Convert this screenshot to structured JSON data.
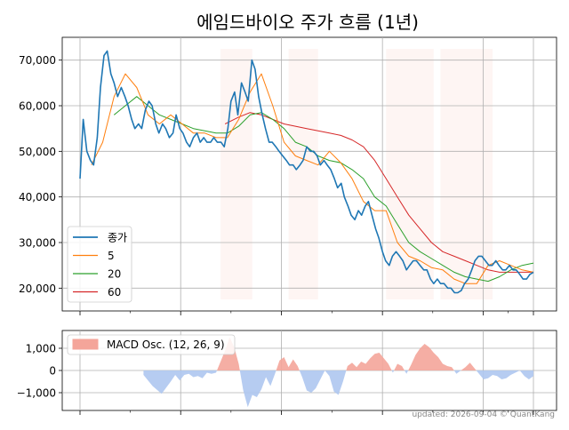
{
  "chart_data": [
    {
      "type": "line",
      "title": "에임드바이오 주가 흐름 (1년)",
      "x_range": [
        0,
        100
      ],
      "ylim": [
        15000,
        75000
      ],
      "y_ticks": [
        20000,
        30000,
        40000,
        50000,
        60000,
        70000
      ],
      "y_tick_labels": [
        "20,000",
        "30,000",
        "40,000",
        "50,000",
        "60,000",
        "70,000"
      ],
      "grid": true,
      "legend_position": "lower-left",
      "shaded_ranges": [
        [
          31.0,
          38.0
        ],
        [
          46.0,
          52.5
        ],
        [
          67.5,
          78.0
        ],
        [
          79.5,
          91.0
        ]
      ],
      "colors": {
        "종가": "#1f77b4",
        "5": "#ff7f0e",
        "20": "#2ca02c",
        "60": "#d62728",
        "shade": "#fdecea"
      },
      "series": [
        {
          "name": "종가",
          "x": [
            0,
            0.7,
            1.5,
            2.3,
            3.0,
            3.8,
            4.5,
            5.3,
            6.0,
            6.8,
            7.5,
            8.3,
            9.1,
            9.9,
            10.6,
            11.4,
            12.1,
            12.9,
            13.6,
            14.4,
            15.2,
            15.9,
            16.7,
            17.4,
            18.2,
            18.9,
            19.7,
            20.5,
            21.2,
            22.0,
            22.7,
            23.5,
            24.2,
            25.0,
            25.8,
            26.5,
            27.3,
            28.0,
            28.8,
            29.5,
            30.3,
            31.1,
            31.8,
            32.6,
            33.3,
            34.1,
            34.8,
            35.6,
            36.4,
            37.1,
            37.9,
            38.6,
            39.4,
            40.2,
            40.9,
            41.7,
            42.4,
            43.2,
            43.9,
            44.7,
            45.5,
            46.2,
            47.0,
            47.7,
            48.5,
            49.2,
            50.0,
            50.8,
            51.5,
            52.3,
            53.0,
            53.8,
            54.5,
            55.3,
            56.1,
            56.8,
            57.6,
            58.3,
            59.1,
            59.8,
            60.6,
            61.4,
            62.1,
            62.9,
            63.6,
            64.4,
            65.2,
            65.9,
            66.7,
            67.4,
            68.2,
            68.9,
            69.7,
            70.5,
            71.2,
            72.0,
            72.7,
            73.5,
            74.2,
            75.0,
            75.8,
            76.5,
            77.3,
            78.0,
            78.8,
            79.5,
            80.3,
            81.1,
            81.8,
            82.6,
            83.3,
            84.1,
            84.8,
            85.6,
            86.4,
            87.1,
            87.9,
            88.6,
            89.4,
            90.2,
            90.9,
            91.7,
            92.4,
            93.2,
            93.9,
            94.7,
            95.5,
            96.2,
            97.0,
            97.7,
            98.5,
            99.2,
            100
          ],
          "values": [
            44000,
            57000,
            50000,
            48000,
            47000,
            53000,
            64000,
            71000,
            72000,
            67000,
            65000,
            62000,
            64000,
            62000,
            60000,
            57000,
            55000,
            56000,
            55000,
            59000,
            61000,
            60000,
            56000,
            54000,
            56000,
            55000,
            53000,
            54000,
            58000,
            55000,
            54000,
            52000,
            51000,
            53000,
            54000,
            52000,
            53000,
            52000,
            52000,
            53000,
            52000,
            52000,
            51000,
            55000,
            61000,
            63000,
            58000,
            65000,
            63000,
            61000,
            70000,
            68000,
            62000,
            58000,
            55000,
            52000,
            52000,
            51000,
            50000,
            49000,
            48000,
            47000,
            47000,
            46000,
            47000,
            48000,
            51000,
            50000,
            50000,
            49000,
            47000,
            48000,
            47000,
            46000,
            44000,
            42000,
            43000,
            40000,
            38000,
            36000,
            35000,
            37000,
            36000,
            38000,
            39000,
            36000,
            33000,
            31000,
            28000,
            26000,
            25000,
            27000,
            28000,
            27000,
            26000,
            24000,
            25000,
            26000,
            26000,
            25000,
            24000,
            24000,
            22000,
            21000,
            22000,
            21000,
            21000,
            20000,
            20000,
            19000,
            19000,
            19500,
            21000,
            22000,
            24000,
            26000,
            27000,
            27000,
            26000,
            25000,
            25000,
            26000,
            25000,
            24000,
            24000,
            25000,
            24000,
            24000,
            23000,
            22000,
            22000,
            23000,
            23500
          ],
          "stroke_width": 1.6
        },
        {
          "name": "5",
          "x": [
            2.5,
            5,
            7.5,
            10,
            12.5,
            15,
            17.5,
            20,
            22.5,
            25,
            27.5,
            30,
            32.5,
            35,
            37.5,
            40,
            42.5,
            45,
            47.5,
            50,
            52.5,
            55,
            57.5,
            60,
            62.5,
            65,
            67.5,
            70,
            72.5,
            75,
            77.5,
            80,
            82.5,
            85,
            87.5,
            90,
            92.5,
            95,
            97.5,
            100
          ],
          "values": [
            47000,
            52000,
            62000,
            67000,
            64000,
            58000,
            56000,
            58000,
            56000,
            54000,
            54000,
            53000,
            53000,
            57000,
            63000,
            67000,
            60000,
            52000,
            49000,
            48000,
            47000,
            50000,
            47500,
            44000,
            39000,
            37000,
            37000,
            30000,
            27000,
            26000,
            24500,
            24000,
            22000,
            21000,
            21000,
            25000,
            26000,
            25000,
            24000,
            23500
          ],
          "stroke_width": 1.0
        },
        {
          "name": "20",
          "x": [
            7.5,
            10,
            12.5,
            15,
            17.5,
            20,
            22.5,
            25,
            27.5,
            30,
            32.5,
            35,
            37.5,
            40,
            42.5,
            45,
            47.5,
            50,
            52.5,
            55,
            57.5,
            60,
            62.5,
            65,
            67.5,
            70,
            72.5,
            75,
            77.5,
            80,
            82.5,
            85,
            87.5,
            90,
            92.5,
            95,
            97.5,
            100
          ],
          "values": [
            58000,
            60000,
            62000,
            60000,
            58000,
            57000,
            56000,
            55000,
            54500,
            54000,
            54000,
            55500,
            58000,
            58500,
            57000,
            55000,
            52000,
            51000,
            49000,
            48000,
            47500,
            46000,
            44000,
            40000,
            38000,
            34000,
            30000,
            28000,
            26500,
            25000,
            23500,
            22500,
            22000,
            21500,
            22500,
            24000,
            25000,
            25500
          ],
          "stroke_width": 1.0
        },
        {
          "name": "60",
          "x": [
            32,
            35,
            37.5,
            40,
            42.5,
            45,
            47.5,
            50,
            52.5,
            55,
            57.5,
            60,
            62.5,
            65,
            67.5,
            70,
            72.5,
            75,
            77.5,
            80,
            82.5,
            85,
            87.5,
            90,
            92.5,
            95,
            97.5,
            100
          ],
          "values": [
            56000,
            57500,
            58500,
            58000,
            57000,
            56000,
            55500,
            55000,
            54500,
            54000,
            53500,
            52500,
            51000,
            48000,
            44000,
            40000,
            36000,
            33000,
            30000,
            28000,
            27000,
            26000,
            25000,
            24000,
            23500,
            23500,
            23500,
            23500
          ],
          "stroke_width": 1.0
        }
      ],
      "legend": [
        "종가",
        "5",
        "20",
        "60"
      ]
    },
    {
      "type": "area",
      "x_range": [
        0,
        100
      ],
      "ylim": [
        -1800,
        1800
      ],
      "y_ticks": [
        -1000,
        0,
        1000
      ],
      "y_tick_labels": [
        "−1,000",
        "0",
        "1,000"
      ],
      "grid": true,
      "legend_position": "top-left",
      "legend": [
        "MACD Osc. (12, 26, 9)"
      ],
      "colors": {
        "positive": "#f4a59a",
        "negative": "#aec6f0"
      },
      "series": [
        {
          "name": "MACD Osc. (12, 26, 9)",
          "x": [
            14,
            16,
            18,
            20,
            21,
            22,
            23,
            24,
            25,
            26,
            27,
            28,
            29,
            30,
            31,
            32,
            33,
            34,
            35,
            36,
            37,
            38,
            39,
            40,
            41,
            42,
            43,
            44,
            45,
            46,
            47,
            48,
            49,
            50,
            51,
            52,
            53,
            54,
            55,
            56,
            57,
            58,
            59,
            60,
            61,
            62,
            63,
            64,
            65,
            66,
            67,
            68,
            69,
            70,
            71,
            72,
            73,
            74,
            75,
            76,
            77,
            78,
            79,
            80,
            81,
            82,
            83,
            84,
            85,
            86,
            87,
            88,
            89,
            90,
            91,
            92,
            93,
            94,
            95,
            96,
            97,
            98,
            99,
            100
          ],
          "values": [
            -200,
            -700,
            -1050,
            -500,
            -200,
            -450,
            -200,
            -150,
            -300,
            -250,
            -350,
            -100,
            -150,
            -100,
            400,
            900,
            1500,
            1050,
            300,
            -900,
            -1650,
            -1100,
            -1200,
            -850,
            -300,
            -700,
            -150,
            450,
            600,
            150,
            500,
            200,
            -300,
            -900,
            -1000,
            -800,
            -400,
            0,
            -250,
            -950,
            -1100,
            -500,
            200,
            350,
            150,
            400,
            300,
            550,
            750,
            800,
            550,
            300,
            -100,
            300,
            200,
            -150,
            250,
            700,
            1000,
            1200,
            1050,
            800,
            600,
            300,
            200,
            150,
            -150,
            0,
            150,
            350,
            100,
            -150,
            -400,
            -350,
            -200,
            -250,
            -400,
            -350,
            -200,
            -100,
            0,
            -250,
            -400,
            -250
          ],
          "stroke_width": 0
        }
      ]
    }
  ],
  "footer": {
    "credit": "updated: 2026-09-04 © QuantKang"
  }
}
